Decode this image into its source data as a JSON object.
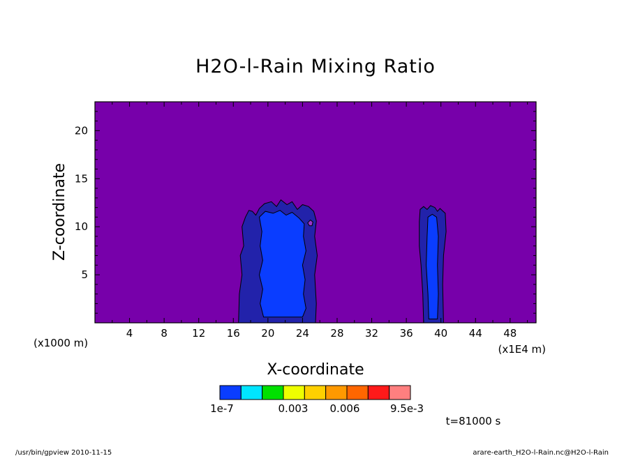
{
  "chart_data": {
    "type": "heatmap",
    "title": "H2O-l-Rain Mixing Ratio",
    "xlabel": "X-coordinate",
    "ylabel": "Z-coordinate",
    "x_unit": "(x1000 m)",
    "x_unit_right": "(x1E4 m)",
    "xlim": [
      0,
      51
    ],
    "ylim": [
      0,
      23
    ],
    "xticks": [
      4,
      8,
      12,
      16,
      20,
      24,
      28,
      32,
      36,
      40,
      44,
      48
    ],
    "yticks": [
      5,
      10,
      15,
      20
    ],
    "background_color": "#7700aa",
    "colorbar": {
      "colors": [
        "#0a3dff",
        "#00e5ff",
        "#00e000",
        "#eeff00",
        "#ffd000",
        "#ff9900",
        "#ff6600",
        "#ff1a1a",
        "#ff7f7f"
      ],
      "tick_labels": [
        "1e-7",
        "0.003",
        "0.006",
        "9.5e-3"
      ]
    },
    "time_label": "t=81000 s",
    "regions": [
      {
        "level": "1e-7",
        "color": "#2222aa",
        "outline": [
          [
            16.6,
            0
          ],
          [
            16.7,
            3
          ],
          [
            17,
            5
          ],
          [
            16.8,
            7
          ],
          [
            17.2,
            8
          ],
          [
            17,
            10
          ],
          [
            17.4,
            11
          ],
          [
            17.8,
            11.7
          ],
          [
            18.2,
            11.6
          ],
          [
            18.6,
            11.2
          ],
          [
            19,
            11.9
          ],
          [
            19.6,
            12.4
          ],
          [
            20.4,
            12.6
          ],
          [
            21,
            12.1
          ],
          [
            21.5,
            12.8
          ],
          [
            22.2,
            12.3
          ],
          [
            22.8,
            12.6
          ],
          [
            23.4,
            11.8
          ],
          [
            24,
            12.3
          ],
          [
            24.7,
            12.1
          ],
          [
            25.3,
            11.6
          ],
          [
            25.6,
            10.6
          ],
          [
            25.4,
            9
          ],
          [
            25.7,
            7
          ],
          [
            25.4,
            5
          ],
          [
            25.6,
            2
          ],
          [
            25.5,
            0
          ]
        ]
      },
      {
        "level": "1e-7",
        "color": "#2222aa",
        "outline": [
          [
            38,
            0
          ],
          [
            37.9,
            3
          ],
          [
            37.7,
            6
          ],
          [
            37.5,
            8
          ],
          [
            37.5,
            10.5
          ],
          [
            37.6,
            11.8
          ],
          [
            38,
            12.1
          ],
          [
            38.4,
            11.8
          ],
          [
            38.8,
            12.2
          ],
          [
            39.3,
            12
          ],
          [
            39.6,
            11.6
          ],
          [
            39.9,
            11.9
          ],
          [
            40.5,
            11.4
          ],
          [
            40.6,
            9.5
          ],
          [
            40.3,
            7
          ],
          [
            40.2,
            4
          ],
          [
            40.3,
            0
          ]
        ]
      },
      {
        "level": "0.003",
        "color": "#0a3dff",
        "outline": [
          [
            19.5,
            0.6
          ],
          [
            19.1,
            2
          ],
          [
            19.4,
            3.5
          ],
          [
            19,
            5
          ],
          [
            19.4,
            6.5
          ],
          [
            19.1,
            8
          ],
          [
            19.3,
            9.5
          ],
          [
            19,
            11
          ],
          [
            19.7,
            11.6
          ],
          [
            20.6,
            11.4
          ],
          [
            21.4,
            11.7
          ],
          [
            22.1,
            11.2
          ],
          [
            22.8,
            11.5
          ],
          [
            23.6,
            10.9
          ],
          [
            24.2,
            10.3
          ],
          [
            24.1,
            9
          ],
          [
            24.4,
            7.5
          ],
          [
            24,
            6
          ],
          [
            24.3,
            4.5
          ],
          [
            24.1,
            3
          ],
          [
            24.4,
            1.5
          ],
          [
            24,
            0.6
          ]
        ]
      },
      {
        "level": "0.003",
        "color": "#0a3dff",
        "outline": [
          [
            38.6,
            0.4
          ],
          [
            38.5,
            3
          ],
          [
            38.3,
            6
          ],
          [
            38.4,
            9
          ],
          [
            38.5,
            11
          ],
          [
            39,
            11.3
          ],
          [
            39.5,
            11
          ],
          [
            39.7,
            9
          ],
          [
            39.6,
            6
          ],
          [
            39.7,
            3
          ],
          [
            39.6,
            0.4
          ]
        ]
      },
      {
        "level": "0.006",
        "color": "#9933cc",
        "outline": [
          [
            24.6,
            10.4
          ],
          [
            24.8,
            10.1
          ],
          [
            25.1,
            10.1
          ],
          [
            25.2,
            10.5
          ],
          [
            24.9,
            10.7
          ]
        ]
      }
    ]
  },
  "footer": {
    "left": "/usr/bin/gpview   2010-11-15",
    "right": "arare-earth_H2O-l-Rain.nc@H2O-l-Rain"
  }
}
